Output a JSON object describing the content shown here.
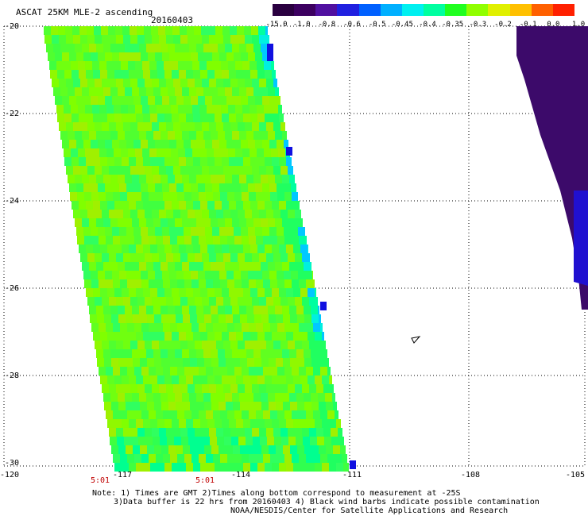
{
  "header": {
    "title": "ASCAT 25KM MLE-2 ascending",
    "date": "20160403"
  },
  "colorbar": {
    "labels": [
      "-15.0",
      "-1.0",
      "-0.8",
      "-0.6",
      "-0.5",
      "-0.45",
      "-0.4",
      "-0.35",
      "-0.3",
      "-0.2",
      "-0.1",
      "0.0",
      "1.0"
    ],
    "colors": [
      "#2a0040",
      "#3c0060",
      "#5010a0",
      "#2020e0",
      "#0060ff",
      "#00b0ff",
      "#00f0f0",
      "#00ffa0",
      "#20ff20",
      "#90ff00",
      "#e0f000",
      "#ffc000",
      "#ff6000",
      "#ff2000"
    ]
  },
  "axes": {
    "y_labels": [
      "-20",
      "-22",
      "-24",
      "-26",
      "-28",
      "-30"
    ],
    "x_labels": [
      "-120",
      "-117",
      "-114",
      "-111",
      "-108",
      "-105"
    ]
  },
  "times": [
    "5:01",
    "5:01"
  ],
  "notes": {
    "line1": "Note: 1) Times are GMT 2)Times along bottom correspond to measurement at -25S",
    "line2": "3)Data buffer is 22 hrs from 20160403 4) Black wind barbs indicate possible contamination",
    "line3": "NOAA/NESDIS/Center for Satellite Applications and Research"
  }
}
